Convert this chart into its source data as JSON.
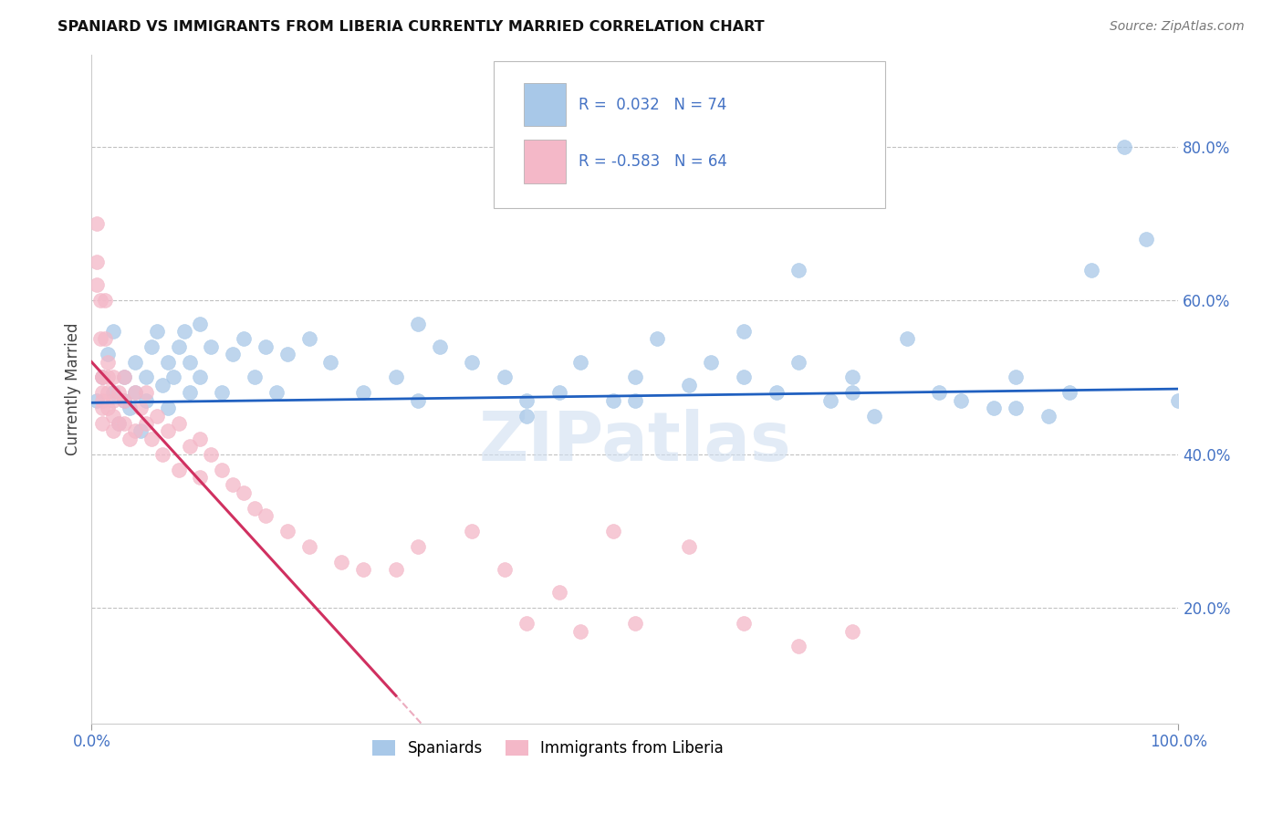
{
  "title": "SPANIARD VS IMMIGRANTS FROM LIBERIA CURRENTLY MARRIED CORRELATION CHART",
  "source": "Source: ZipAtlas.com",
  "ylabel": "Currently Married",
  "watermark": "ZIPatlas",
  "legend_label1": "Spaniards",
  "legend_label2": "Immigrants from Liberia",
  "r1": "0.032",
  "n1": "74",
  "r2": "-0.583",
  "n2": "64",
  "blue_color": "#a8c8e8",
  "pink_color": "#f4b8c8",
  "trendline_blue": "#2060c0",
  "trendline_pink": "#d03060",
  "blue_x": [
    0.005,
    0.01,
    0.015,
    0.02,
    0.02,
    0.025,
    0.03,
    0.03,
    0.035,
    0.04,
    0.04,
    0.045,
    0.05,
    0.05,
    0.055,
    0.06,
    0.065,
    0.07,
    0.07,
    0.075,
    0.08,
    0.085,
    0.09,
    0.09,
    0.1,
    0.1,
    0.11,
    0.12,
    0.13,
    0.14,
    0.15,
    0.16,
    0.17,
    0.18,
    0.2,
    0.22,
    0.25,
    0.28,
    0.3,
    0.32,
    0.35,
    0.38,
    0.4,
    0.43,
    0.45,
    0.48,
    0.5,
    0.52,
    0.55,
    0.57,
    0.6,
    0.63,
    0.65,
    0.68,
    0.7,
    0.72,
    0.75,
    0.78,
    0.8,
    0.83,
    0.85,
    0.88,
    0.9,
    0.92,
    0.95,
    0.97,
    1.0,
    0.3,
    0.4,
    0.5,
    0.6,
    0.65,
    0.7,
    0.85
  ],
  "blue_y": [
    0.47,
    0.5,
    0.53,
    0.48,
    0.56,
    0.44,
    0.47,
    0.5,
    0.46,
    0.48,
    0.52,
    0.43,
    0.47,
    0.5,
    0.54,
    0.56,
    0.49,
    0.46,
    0.52,
    0.5,
    0.54,
    0.56,
    0.48,
    0.52,
    0.57,
    0.5,
    0.54,
    0.48,
    0.53,
    0.55,
    0.5,
    0.54,
    0.48,
    0.53,
    0.55,
    0.52,
    0.48,
    0.5,
    0.47,
    0.54,
    0.52,
    0.5,
    0.45,
    0.48,
    0.52,
    0.47,
    0.5,
    0.55,
    0.49,
    0.52,
    0.5,
    0.48,
    0.52,
    0.47,
    0.5,
    0.45,
    0.55,
    0.48,
    0.47,
    0.46,
    0.5,
    0.45,
    0.48,
    0.64,
    0.8,
    0.68,
    0.47,
    0.57,
    0.47,
    0.47,
    0.56,
    0.64,
    0.48,
    0.46
  ],
  "pink_x": [
    0.005,
    0.005,
    0.005,
    0.008,
    0.008,
    0.01,
    0.01,
    0.01,
    0.01,
    0.01,
    0.01,
    0.012,
    0.012,
    0.015,
    0.015,
    0.015,
    0.015,
    0.02,
    0.02,
    0.02,
    0.02,
    0.025,
    0.025,
    0.03,
    0.03,
    0.03,
    0.035,
    0.04,
    0.04,
    0.045,
    0.05,
    0.05,
    0.055,
    0.06,
    0.065,
    0.07,
    0.08,
    0.08,
    0.09,
    0.1,
    0.1,
    0.11,
    0.12,
    0.13,
    0.14,
    0.15,
    0.16,
    0.18,
    0.2,
    0.23,
    0.25,
    0.28,
    0.3,
    0.35,
    0.38,
    0.4,
    0.43,
    0.45,
    0.48,
    0.5,
    0.55,
    0.6,
    0.65,
    0.7
  ],
  "pink_y": [
    0.7,
    0.65,
    0.62,
    0.6,
    0.55,
    0.5,
    0.5,
    0.48,
    0.47,
    0.46,
    0.44,
    0.6,
    0.55,
    0.52,
    0.5,
    0.48,
    0.46,
    0.5,
    0.47,
    0.45,
    0.43,
    0.48,
    0.44,
    0.5,
    0.47,
    0.44,
    0.42,
    0.48,
    0.43,
    0.46,
    0.48,
    0.44,
    0.42,
    0.45,
    0.4,
    0.43,
    0.44,
    0.38,
    0.41,
    0.42,
    0.37,
    0.4,
    0.38,
    0.36,
    0.35,
    0.33,
    0.32,
    0.3,
    0.28,
    0.26,
    0.25,
    0.25,
    0.28,
    0.3,
    0.25,
    0.18,
    0.22,
    0.17,
    0.3,
    0.18,
    0.28,
    0.18,
    0.15,
    0.17
  ],
  "yticks": [
    0.2,
    0.4,
    0.6,
    0.8
  ],
  "ytick_labels": [
    "20.0%",
    "40.0%",
    "60.0%",
    "80.0%"
  ],
  "xlim": [
    0.0,
    1.0
  ],
  "ylim": [
    0.05,
    0.92
  ],
  "grid_color": "#bbbbbb",
  "background_color": "#ffffff",
  "blue_trendline_intercept": 0.467,
  "blue_trendline_slope": 0.018,
  "pink_trendline_intercept": 0.52,
  "pink_trendline_slope": -1.55
}
